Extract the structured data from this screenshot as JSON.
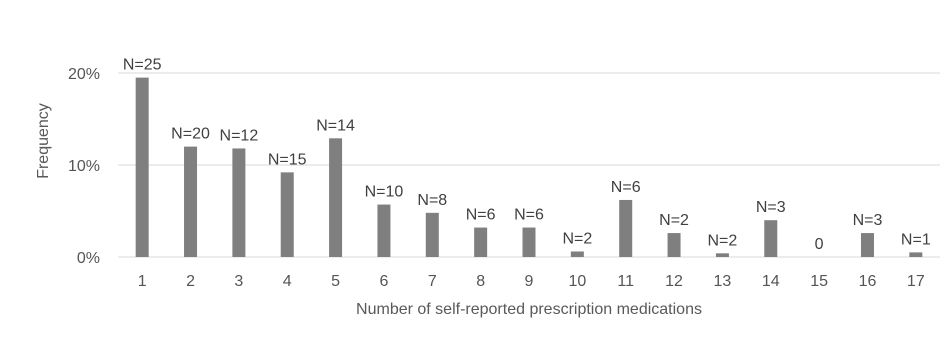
{
  "chart_data": {
    "type": "bar",
    "title": "",
    "xlabel": "Number of self-reported prescription medications",
    "ylabel": "Frequency",
    "categories": [
      "1",
      "2",
      "3",
      "4",
      "5",
      "6",
      "7",
      "8",
      "9",
      "10",
      "11",
      "12",
      "13",
      "14",
      "15",
      "16",
      "17"
    ],
    "values": [
      19.5,
      12,
      11.8,
      9.2,
      12.9,
      5.7,
      4.8,
      3.2,
      3.2,
      0.6,
      6.2,
      2.6,
      0.4,
      4.0,
      0,
      2.6,
      0.5
    ],
    "data_labels": [
      "N=25",
      "N=20",
      "N=12",
      "N=15",
      "N=14",
      "N=10",
      "N=8",
      "N=6",
      "N=6",
      "N=2",
      "N=6",
      "N=2",
      "N=2",
      "N=3",
      "0",
      "N=3",
      "N=1"
    ],
    "y_ticks": [
      {
        "value": 0,
        "label": "0%"
      },
      {
        "value": 10,
        "label": "10%"
      },
      {
        "value": 20,
        "label": "20%"
      }
    ],
    "ylim": [
      0,
      22
    ],
    "grid": true,
    "legend": "none",
    "bar_color": "#7f7f7f",
    "grid_color": "#d9d9d9"
  }
}
